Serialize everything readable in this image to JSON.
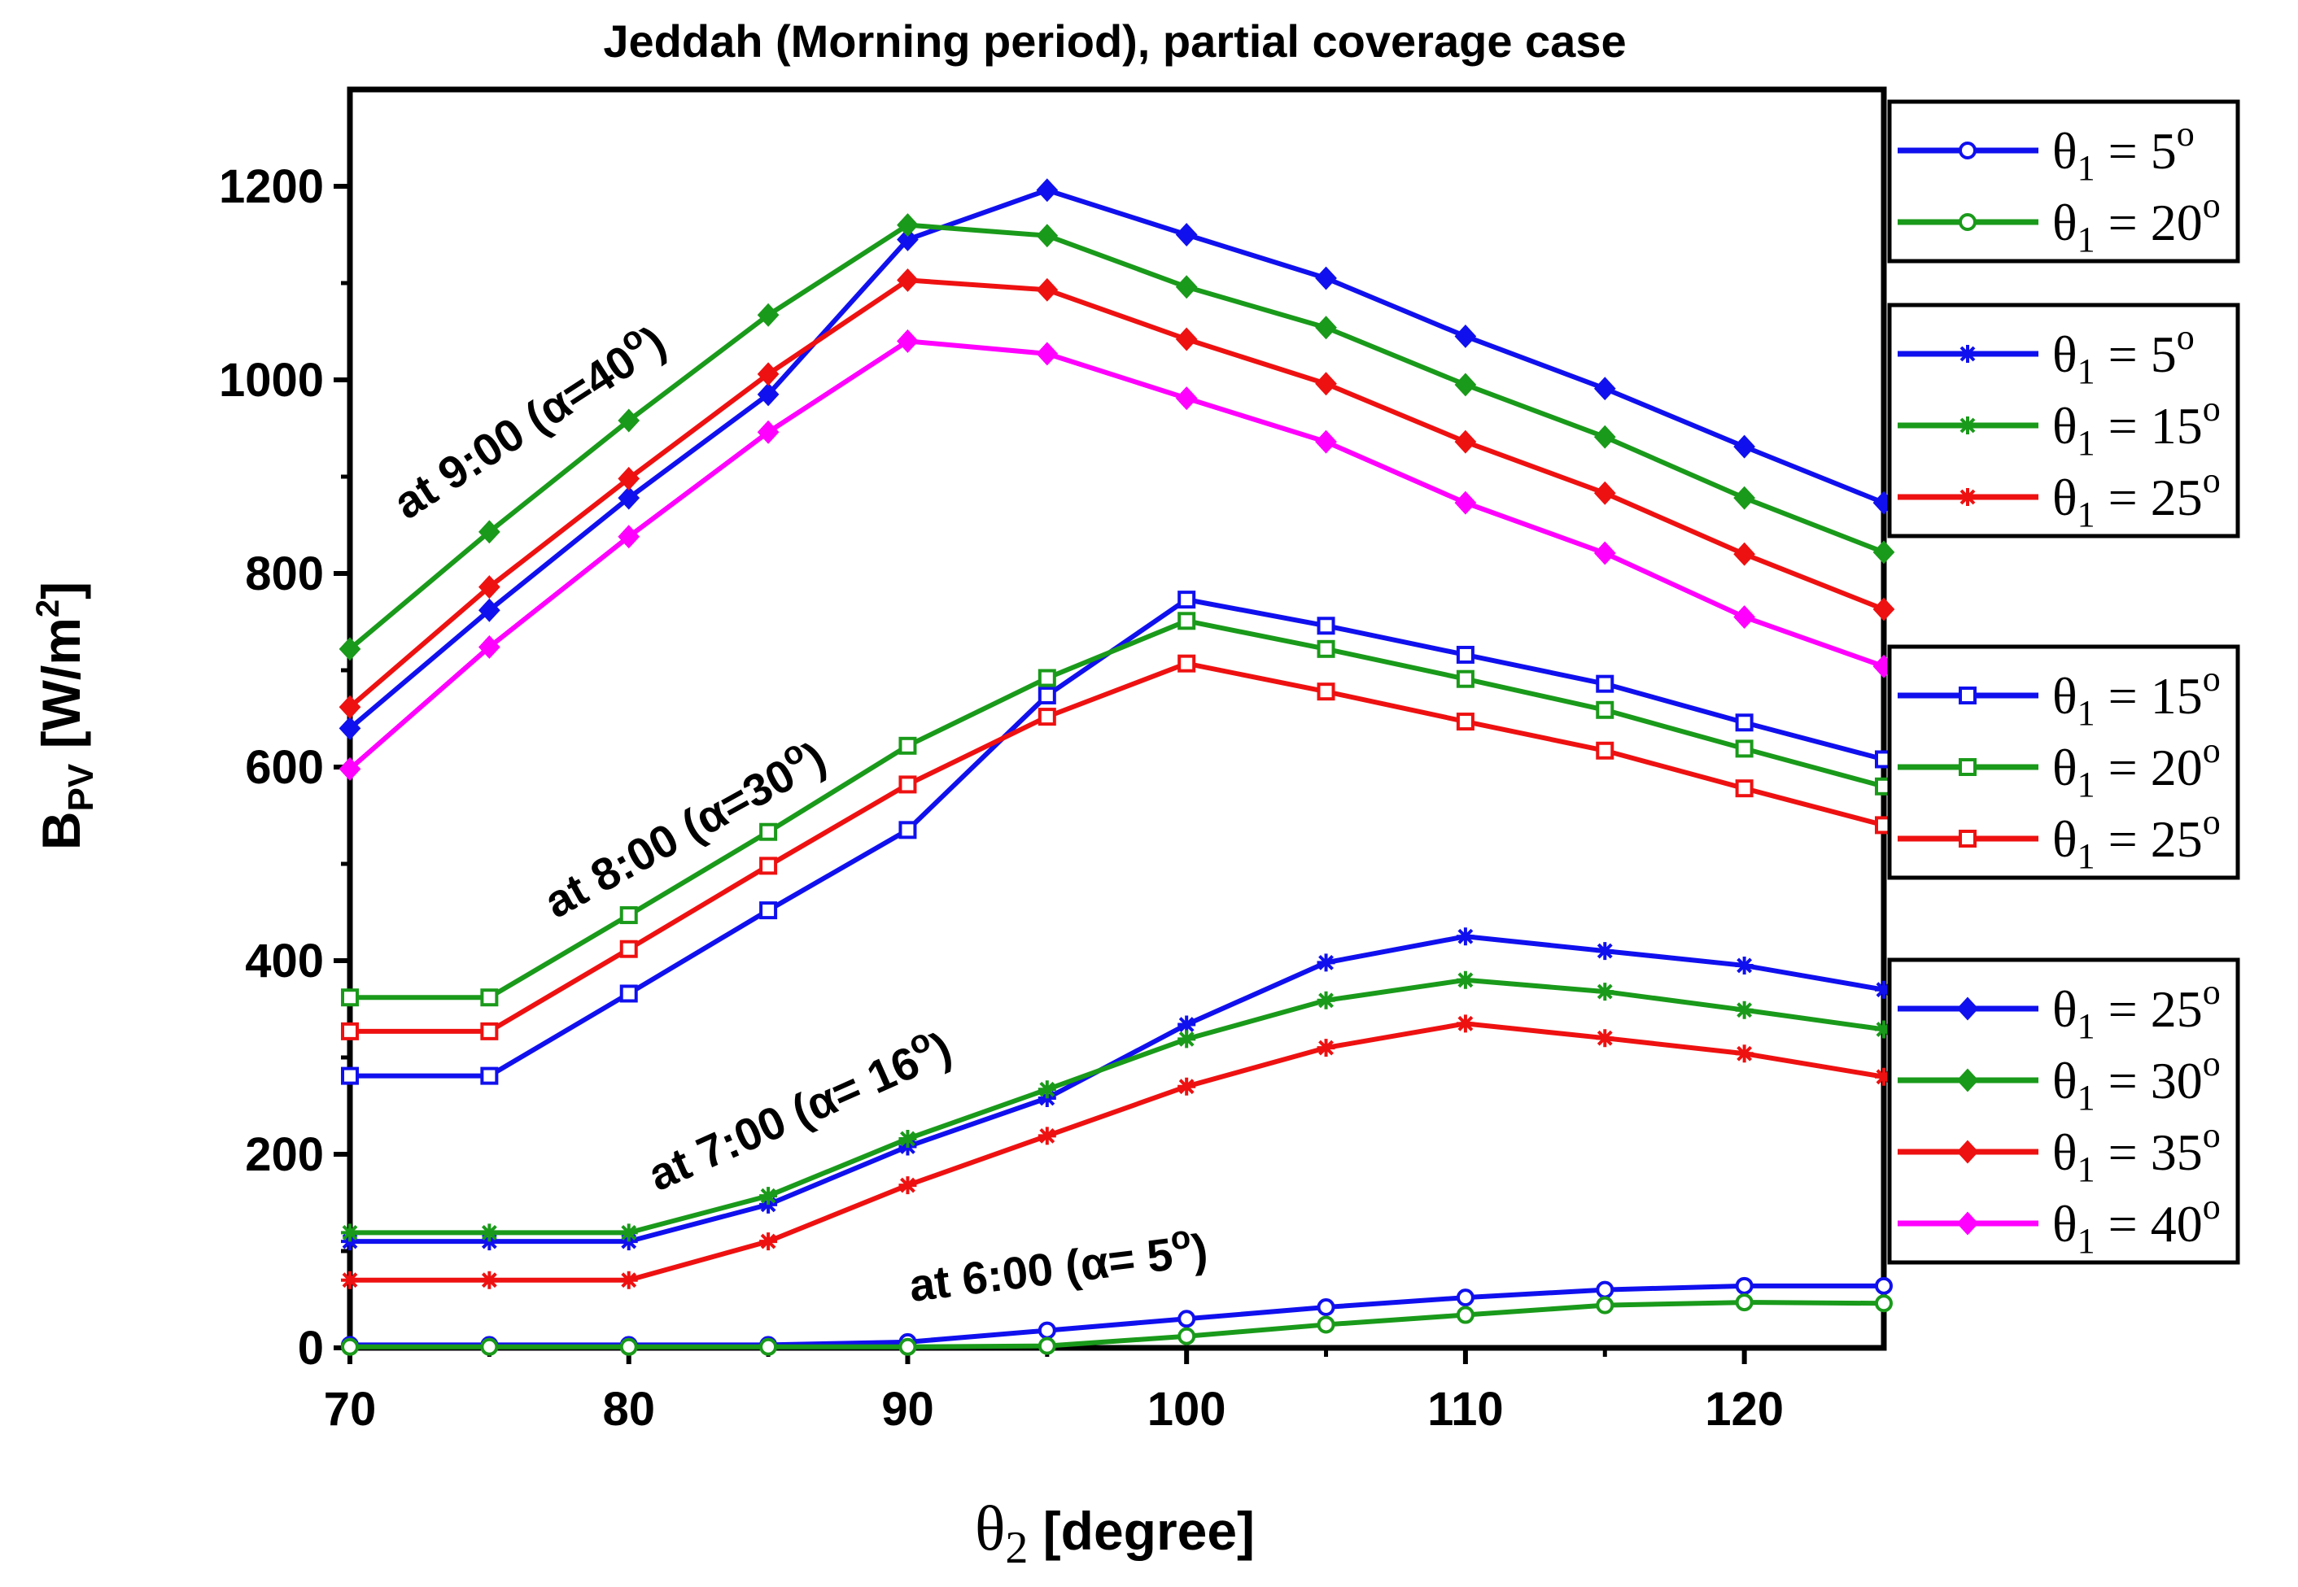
{
  "chart_data": {
    "type": "line",
    "title": "Jeddah (Morning period), partial coverage case",
    "xlabel": {
      "symbol": "θ",
      "sub": "2",
      "rest": " [degree]"
    },
    "ylabel": {
      "main": "B",
      "sub": "PV",
      "unit_open": " [W/m",
      "sup": "2",
      "unit_close": "]"
    },
    "xlim": [
      70,
      125
    ],
    "ylim": [
      0,
      1300
    ],
    "xticks": [
      70,
      80,
      90,
      100,
      110,
      120
    ],
    "yticks": [
      0,
      200,
      400,
      600,
      800,
      1000,
      1200
    ],
    "x": [
      70,
      75,
      80,
      85,
      90,
      95,
      100,
      105,
      110,
      115,
      120,
      125
    ],
    "colors": {
      "blue": "#1010ee",
      "green": "#1a9a1a",
      "red": "#ee1111",
      "magenta": "#ff00ff"
    },
    "annotations": [
      {
        "id": "a9",
        "text": "at 9:00 (α=40",
        "sup": "o",
        "close": ")"
      },
      {
        "id": "a8",
        "text": "at 8:00 (α=30",
        "sup": "o",
        "close": ")"
      },
      {
        "id": "a7",
        "text": "at 7:00 (α= 16",
        "sup": "o",
        "close": ")"
      },
      {
        "id": "a6",
        "text": "at 6:00 (α= 5",
        "sup": "o",
        "close": ")"
      }
    ],
    "series": [
      {
        "group": "6:00",
        "name": "θ1 = 5o",
        "theta": "5",
        "color": "blue",
        "marker": "circle",
        "values": [
          3,
          3,
          3,
          3,
          6,
          18,
          30,
          42,
          52,
          60,
          64,
          64
        ]
      },
      {
        "group": "6:00",
        "name": "θ1 = 20o",
        "theta": "20",
        "color": "green",
        "marker": "circle",
        "values": [
          1,
          1,
          1,
          1,
          1,
          2,
          12,
          24,
          34,
          44,
          47,
          46
        ]
      },
      {
        "group": "7:00",
        "name": "θ1 = 5o",
        "theta": "5",
        "color": "blue",
        "marker": "star",
        "values": [
          110,
          110,
          110,
          148,
          208,
          258,
          334,
          398,
          425,
          410,
          395,
          370
        ]
      },
      {
        "group": "7:00",
        "name": "θ1 = 15o",
        "theta": "15",
        "color": "green",
        "marker": "star",
        "values": [
          119,
          119,
          119,
          157,
          216,
          267,
          319,
          359,
          380,
          368,
          349,
          329
        ]
      },
      {
        "group": "7:00",
        "name": "θ1 = 25o",
        "theta": "25",
        "color": "red",
        "marker": "star",
        "values": [
          70,
          70,
          70,
          110,
          168,
          219,
          270,
          310,
          335,
          320,
          304,
          280
        ]
      },
      {
        "group": "8:00",
        "name": "θ1 = 15o",
        "theta": "15",
        "color": "blue",
        "marker": "square",
        "values": [
          281,
          281,
          366,
          452,
          535,
          674,
          773,
          746,
          716,
          686,
          646,
          608
        ]
      },
      {
        "group": "8:00",
        "name": "θ1 = 20o",
        "theta": "20",
        "color": "green",
        "marker": "square",
        "values": [
          362,
          362,
          447,
          533,
          622,
          692,
          751,
          722,
          691,
          659,
          619,
          580
        ]
      },
      {
        "group": "8:00",
        "name": "θ1 = 25o",
        "theta": "25",
        "color": "red",
        "marker": "square",
        "values": [
          327,
          327,
          412,
          498,
          582,
          652,
          707,
          678,
          647,
          617,
          578,
          540
        ]
      },
      {
        "group": "9:00",
        "name": "θ1 = 25o",
        "theta": "25",
        "color": "blue",
        "marker": "diamond",
        "values": [
          640,
          762,
          878,
          985,
          1145,
          1196,
          1150,
          1105,
          1045,
          991,
          931,
          873
        ]
      },
      {
        "group": "9:00",
        "name": "θ1 = 30o",
        "theta": "30",
        "color": "green",
        "marker": "diamond",
        "values": [
          722,
          843,
          958,
          1067,
          1160,
          1149,
          1096,
          1054,
          995,
          941,
          878,
          822
        ]
      },
      {
        "group": "9:00",
        "name": "θ1 = 35o",
        "theta": "35",
        "color": "red",
        "marker": "diamond",
        "values": [
          662,
          786,
          898,
          1006,
          1103,
          1093,
          1042,
          996,
          936,
          883,
          820,
          763
        ]
      },
      {
        "group": "9:00",
        "name": "θ1 = 40o",
        "theta": "40",
        "color": "magenta",
        "marker": "diamond",
        "values": [
          598,
          724,
          838,
          946,
          1040,
          1027,
          981,
          936,
          873,
          821,
          755,
          704
        ]
      }
    ],
    "legend": {
      "position": "right",
      "boxes": [
        [
          {
            "label": "θ1 = 5o",
            "theta": "5",
            "color": "blue",
            "marker": "circle"
          },
          {
            "label": "θ1 = 20o",
            "theta": "20",
            "color": "green",
            "marker": "circle"
          }
        ],
        [
          {
            "label": "θ1 = 5o",
            "theta": "5",
            "color": "blue",
            "marker": "star"
          },
          {
            "label": "θ1 = 15o",
            "theta": "15",
            "color": "green",
            "marker": "star"
          },
          {
            "label": "θ1 = 25o",
            "theta": "25",
            "color": "red",
            "marker": "star"
          }
        ],
        [
          {
            "label": "θ1 = 15o",
            "theta": "15",
            "color": "blue",
            "marker": "square"
          },
          {
            "label": "θ1 = 20o",
            "theta": "20",
            "color": "green",
            "marker": "square"
          },
          {
            "label": "θ1 = 25o",
            "theta": "25",
            "color": "red",
            "marker": "square"
          }
        ],
        [
          {
            "label": "θ1 = 25o",
            "theta": "25",
            "color": "blue",
            "marker": "diamond"
          },
          {
            "label": "θ1 = 30o",
            "theta": "30",
            "color": "green",
            "marker": "diamond"
          },
          {
            "label": "θ1 = 35o",
            "theta": "35",
            "color": "red",
            "marker": "diamond"
          },
          {
            "label": "θ1 = 40o",
            "theta": "40",
            "color": "magenta",
            "marker": "diamond"
          }
        ]
      ]
    }
  }
}
